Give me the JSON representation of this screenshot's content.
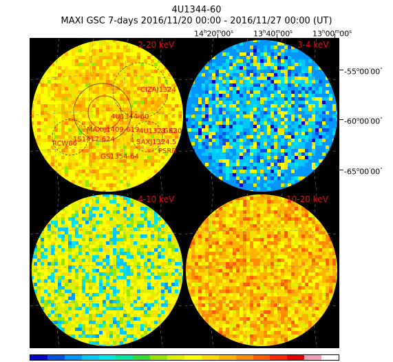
{
  "header": {
    "source_name": "4U1344-60",
    "subtitle": "MAXI GSC 7-days 2016/11/20 00:00 - 2016/11/27 00:00 (UT)"
  },
  "axes": {
    "ra": [
      {
        "h": "14",
        "m": "20",
        "s": "00"
      },
      {
        "h": "13",
        "m": "40",
        "s": "00"
      },
      {
        "h": "13",
        "m": "00",
        "s": "00"
      }
    ],
    "dec": [
      {
        "d": "-55",
        "m": "00",
        "s": "00"
      },
      {
        "d": "-60",
        "m": "00",
        "s": "00"
      },
      {
        "d": "-65",
        "m": "00",
        "s": "00"
      }
    ]
  },
  "panels": [
    {
      "label": "2-20 keV",
      "palette": "warm"
    },
    {
      "label": "3-4 keV",
      "palette": "cool"
    },
    {
      "label": "4-10 keV",
      "palette": "mid"
    },
    {
      "label": "10-20 keV",
      "palette": "warm2"
    }
  ],
  "sources": [
    {
      "name": "CIZAJ1324"
    },
    {
      "name": "4U1344-60"
    },
    {
      "name": "MAXIJ1409-619"
    },
    {
      "name": "4U1323-62"
    },
    {
      "name": "GX30"
    },
    {
      "name": "RCW86"
    },
    {
      "name": "1S1417-624"
    },
    {
      "name": "SAXJ1324.5"
    },
    {
      "name": "PSRB"
    },
    {
      "name": "GS1354-64"
    }
  ],
  "colors": {
    "background": "#000000",
    "label": "#e01010",
    "scale": [
      "#0000c8",
      "#0050e6",
      "#0096ff",
      "#00c8ff",
      "#00e6e6",
      "#00e6a0",
      "#32dc32",
      "#96e600",
      "#dcf000",
      "#ffff00",
      "#ffdc00",
      "#ffb400",
      "#ff8c00",
      "#ff5a00",
      "#ff2800",
      "#e60000",
      "#f0a0b4",
      "#ffffff"
    ]
  }
}
